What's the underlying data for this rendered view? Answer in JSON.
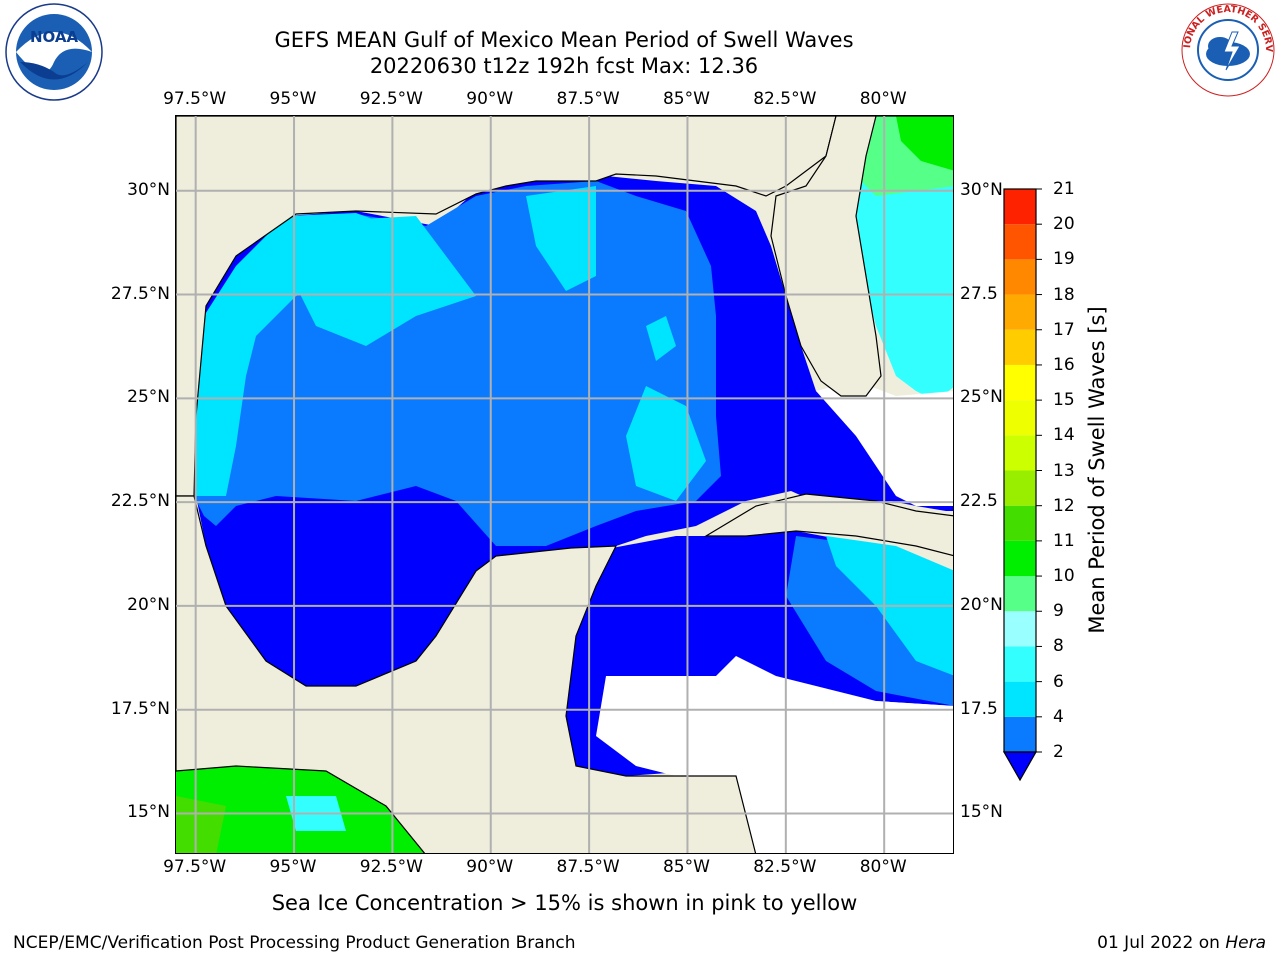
{
  "title_line1": "GEFS MEAN Gulf of Mexico Mean Period of Swell Waves",
  "title_line2": "20220630 t12z 192h fcst   Max: 12.36",
  "lon_labels": [
    "97.5°W",
    "95°W",
    "92.5°W",
    "90°W",
    "87.5°W",
    "85°W",
    "82.5°W",
    "80°W"
  ],
  "lat_labels_left": [
    "30°N",
    "27.5°N",
    "25°N",
    "22.5°N",
    "20°N",
    "17.5°N",
    "15°N"
  ],
  "lat_labels_right": [
    "30°N",
    "27.5",
    "25°N",
    "22.5",
    "20°N",
    "17.5",
    "15°N"
  ],
  "colorbar": {
    "title": "Mean Period of Swell Waves [s]",
    "levels": [
      "2",
      "4",
      "6",
      "8",
      "9",
      "10",
      "11",
      "12",
      "13",
      "14",
      "15",
      "16",
      "17",
      "18",
      "19",
      "20",
      "21"
    ],
    "colors": [
      "#0000ff",
      "#0a7aff",
      "#00e5ff",
      "#33ffff",
      "#99ffff",
      "#55ff88",
      "#00ee00",
      "#44dd00",
      "#99ee00",
      "#ccff00",
      "#eeff00",
      "#ffff00",
      "#ffcc00",
      "#ffaa00",
      "#ff8800",
      "#ff5500",
      "#ff2200",
      "#ff0000"
    ]
  },
  "map": {
    "extent": {
      "lon_min": -98,
      "lon_max": -78.2,
      "lat_min": 14,
      "lat_max": 31.8
    },
    "grid_lons": [
      -97.5,
      -95,
      -92.5,
      -90,
      -87.5,
      -85,
      -82.5,
      -80
    ],
    "grid_lats": [
      30,
      27.5,
      25,
      22.5,
      20,
      17.5,
      15
    ],
    "land_color": "#efeddc",
    "grid_color": "#b0b0b0"
  },
  "footnote": "Sea Ice Concentration > 15% is shown in pink to yellow",
  "credit": "NCEP/EMC/Verification Post Processing Product Generation Branch",
  "date_prefix": "01 Jul 2022 on ",
  "date_host": "Hera",
  "logos": {
    "left": "NOAA",
    "right": "NATIONAL WEATHER SERVICE"
  }
}
